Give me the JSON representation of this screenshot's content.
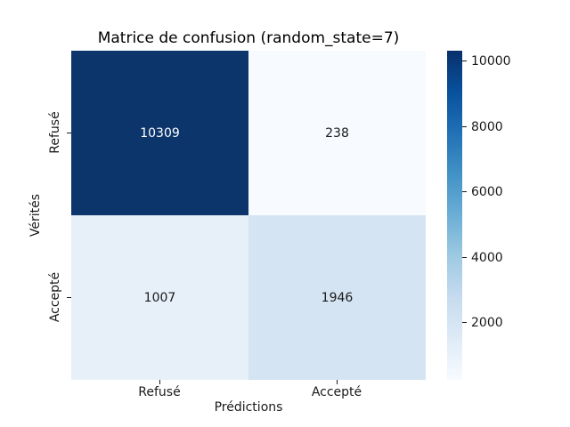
{
  "chart_data": {
    "type": "heatmap",
    "title": "Matrice de confusion (random_state=7)",
    "xlabel": "Prédictions",
    "ylabel": "Vérités",
    "x_tick_labels": [
      "Refusé",
      "Accepté"
    ],
    "y_tick_labels": [
      "Refusé",
      "Accepté"
    ],
    "rows": [
      "Refusé",
      "Accepté"
    ],
    "columns": [
      "Refusé",
      "Accepté"
    ],
    "values": [
      [
        10309,
        238
      ],
      [
        1007,
        1946
      ]
    ],
    "colormap": "Blues",
    "vmin": 238,
    "vmax": 10309,
    "colorbar_ticks": [
      2000,
      4000,
      6000,
      8000,
      10000
    ],
    "colorbar_position": "right",
    "grid": false
  },
  "cell_styles": [
    {
      "bg": "#0c356b",
      "fg": "#ffffff"
    },
    {
      "bg": "#f7fbff",
      "fg": "#1a1a1a"
    },
    {
      "bg": "#e7f0f9",
      "fg": "#1a1a1a"
    },
    {
      "bg": "#d5e4f3",
      "fg": "#1a1a1a"
    }
  ],
  "colorbar_gradient": [
    "#f7fbff",
    "#deebf7",
    "#c6dbef",
    "#9ecae1",
    "#6baed6",
    "#4292c6",
    "#2171b5",
    "#08519c",
    "#08306b"
  ]
}
